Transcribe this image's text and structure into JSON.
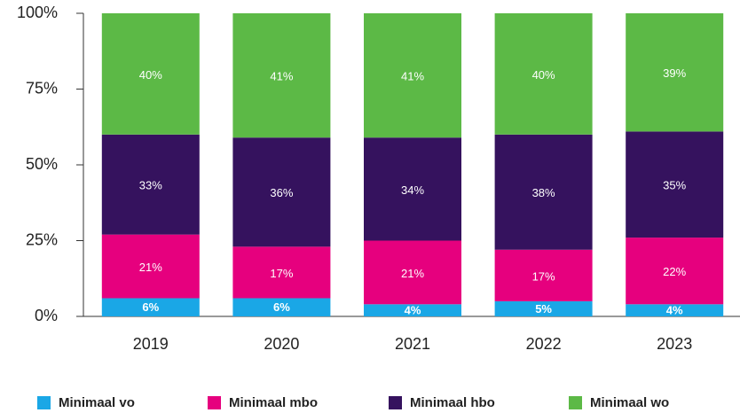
{
  "chart_data": {
    "type": "stacked_bar",
    "categories": [
      "2019",
      "2020",
      "2021",
      "2022",
      "2023"
    ],
    "series": [
      {
        "name": "Minimaal vo",
        "color": "#1aa7e6",
        "values": [
          6,
          6,
          4,
          5,
          4
        ],
        "value_labels": [
          "6%",
          "6%",
          "4%",
          "5%",
          "4%"
        ]
      },
      {
        "name": "Minimaal mbo",
        "color": "#e6007e",
        "values": [
          21,
          17,
          21,
          17,
          22
        ],
        "value_labels": [
          "21%",
          "17%",
          "21%",
          "17%",
          "22%"
        ]
      },
      {
        "name": "Minimaal hbo",
        "color": "#35125e",
        "values": [
          33,
          36,
          34,
          38,
          35
        ],
        "value_labels": [
          "33%",
          "36%",
          "34%",
          "38%",
          "35%"
        ]
      },
      {
        "name": "Minimaal wo",
        "color": "#5cb946",
        "values": [
          40,
          41,
          41,
          40,
          39
        ],
        "value_labels": [
          "40%",
          "41%",
          "41%",
          "40%",
          "39%"
        ]
      }
    ],
    "ylim": [
      0,
      100
    ],
    "yticks": [
      {
        "value": 0,
        "label": "0%"
      },
      {
        "value": 25,
        "label": "25%"
      },
      {
        "value": 50,
        "label": "50%"
      },
      {
        "value": 75,
        "label": "75%"
      },
      {
        "value": 100,
        "label": "100%"
      }
    ],
    "legend": "bottom"
  }
}
